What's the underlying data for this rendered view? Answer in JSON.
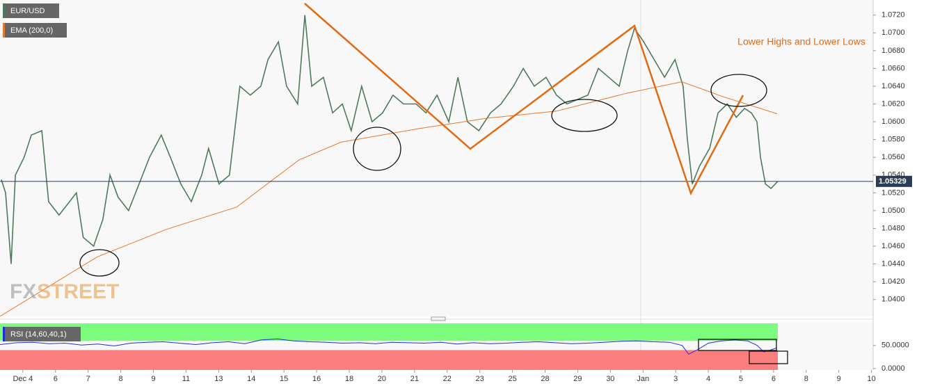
{
  "legend": {
    "symbol": "EUR/USD",
    "ema": "EMA (200,0)"
  },
  "annotation": "Lower Highs and  Lower Lows",
  "watermark": [
    "FX",
    "STREET"
  ],
  "chart_data": [
    {
      "type": "line",
      "x": [
        -0.66,
        -0.53,
        -0.36,
        -0.23,
        0.04,
        0.26,
        0.58,
        0.79,
        1.11,
        1.43,
        1.64,
        1.85,
        2.17,
        2.45,
        2.67,
        2.92,
        3.24,
        3.56,
        3.88,
        4.24,
        4.52,
        4.84,
        5.16,
        5.48,
        5.69,
        6.01,
        6.33,
        6.65,
        6.97,
        7.29,
        7.51,
        7.83,
        8.08,
        8.42,
        8.64,
        8.85,
        9.21,
        9.49,
        9.79,
        10.06,
        10.38,
        10.7,
        11.02,
        11.34,
        11.66,
        12.05,
        12.35,
        12.69,
        13.05,
        13.33,
        13.62,
        13.97,
        14.33,
        14.65,
        15.03,
        15.33,
        15.67,
        16.03,
        16.35,
        16.67,
        16.99,
        17.31,
        17.63,
        17.95,
        18.27,
        18.53,
        18.74,
        19.02,
        19.34,
        19.66,
        19.98,
        20.23,
        20.36,
        20.51,
        20.73,
        21.04,
        21.3,
        21.58,
        21.86,
        22.11,
        22.32,
        22.49,
        22.6,
        22.75,
        22.92,
        23.13
      ],
      "series": [
        {
          "name": "EUR/USD",
          "color": "#4d7a5c",
          "values": [
            1.0535,
            1.052,
            1.044,
            1.054,
            1.056,
            1.0585,
            1.059,
            1.051,
            1.0495,
            1.051,
            1.052,
            1.047,
            1.046,
            1.049,
            1.054,
            1.0515,
            1.05,
            1.053,
            1.056,
            1.0585,
            1.056,
            1.053,
            1.051,
            1.054,
            1.057,
            1.053,
            1.054,
            1.064,
            1.063,
            1.064,
            1.067,
            1.069,
            1.064,
            1.062,
            1.072,
            1.064,
            1.065,
            1.061,
            1.062,
            1.059,
            1.064,
            1.06,
            1.061,
            1.063,
            1.062,
            1.062,
            1.061,
            1.063,
            1.06,
            1.065,
            1.06,
            1.059,
            1.061,
            1.062,
            1.064,
            1.066,
            1.064,
            1.065,
            1.063,
            1.062,
            1.0625,
            1.063,
            1.066,
            1.065,
            1.064,
            1.068,
            1.0705,
            1.069,
            1.067,
            1.065,
            1.067,
            1.064,
            1.058,
            1.053,
            1.055,
            1.057,
            1.061,
            1.062,
            1.0605,
            1.0615,
            1.061,
            1.06,
            1.056,
            1.053,
            1.0525,
            1.0533
          ]
        },
        {
          "name": "EMA (200,0)",
          "color": "#e8782a",
          "x": [
            -0.7,
            2.28,
            4.41,
            6.55,
            8.46,
            9.74,
            12.09,
            14.22,
            16.35,
            18.49,
            20.19,
            21.47,
            23.11
          ],
          "values": [
            1.0381,
            1.0448,
            1.0479,
            1.0504,
            1.0557,
            1.0577,
            1.0592,
            1.0604,
            1.0612,
            1.0632,
            1.0645,
            1.0628,
            1.0609
          ]
        }
      ],
      "last": 1.05329,
      "xlim": [
        -0.7,
        26.05
      ],
      "ylim": [
        1.0381,
        1.0737
      ],
      "yticks": [
        {
          "value": 1.04,
          "label": "1.0400"
        },
        {
          "value": 1.042,
          "label": "1.0420"
        },
        {
          "value": 1.044,
          "label": "1.0440"
        },
        {
          "value": 1.046,
          "label": "1.0460"
        },
        {
          "value": 1.048,
          "label": "1.0480"
        },
        {
          "value": 1.05,
          "label": "1.0500"
        },
        {
          "value": 1.052,
          "label": "1.0520"
        },
        {
          "value": 1.054,
          "label": "1.0540"
        },
        {
          "value": 1.056,
          "label": "1.0560"
        },
        {
          "value": 1.058,
          "label": "1.0580"
        },
        {
          "value": 1.06,
          "label": "1.0600"
        },
        {
          "value": 1.062,
          "label": "1.0620"
        },
        {
          "value": 1.064,
          "label": "1.0640"
        },
        {
          "value": 1.066,
          "label": "1.0660"
        },
        {
          "value": 1.068,
          "label": "1.0680"
        },
        {
          "value": 1.07,
          "label": "1.0700"
        },
        {
          "value": 1.072,
          "label": "1.0720"
        }
      ]
    },
    {
      "type": "line",
      "x": [
        -0.7,
        -0.2,
        0.3,
        0.8,
        1.3,
        1.8,
        2.3,
        2.8,
        3.3,
        3.8,
        4.3,
        4.8,
        5.3,
        5.8,
        6.3,
        6.8,
        7.3,
        7.8,
        8.3,
        8.8,
        9.3,
        9.8,
        10.3,
        10.8,
        11.3,
        11.8,
        12.3,
        12.8,
        13.3,
        13.8,
        14.3,
        14.8,
        15.3,
        15.8,
        16.3,
        16.8,
        17.3,
        17.8,
        18.3,
        18.8,
        19.3,
        19.8,
        20.2,
        20.4,
        20.7,
        21.0,
        21.4,
        21.8,
        22.2,
        22.5,
        22.7,
        22.9,
        23.1
      ],
      "series": [
        {
          "name": "RSI (14,60,40,1)",
          "color": "#1f2fd6",
          "values": [
            52,
            56,
            57,
            54,
            55,
            51,
            53,
            49,
            55,
            57,
            58,
            55,
            52,
            56,
            58,
            54,
            62,
            64,
            60,
            58,
            57,
            55,
            56,
            54,
            57,
            56,
            55,
            57,
            53,
            56,
            54,
            55,
            57,
            58,
            56,
            54,
            55,
            57,
            59,
            60,
            58,
            57,
            50,
            31,
            42,
            55,
            60,
            62,
            60,
            50,
            36,
            40,
            45
          ]
        }
      ],
      "upper": 60,
      "lower": 40,
      "xlim": [
        -0.7,
        26.05
      ],
      "ylim": [
        -3,
        101
      ],
      "yticks": [
        {
          "value": 50,
          "label": "50.0000"
        },
        {
          "value": 0,
          "label": "0.0000"
        }
      ],
      "xticks": [
        {
          "value": 0,
          "label": "Dec 4"
        },
        {
          "value": 1,
          "label": "6"
        },
        {
          "value": 2,
          "label": "7"
        },
        {
          "value": 3,
          "label": "8"
        },
        {
          "value": 4,
          "label": "9"
        },
        {
          "value": 5,
          "label": "11"
        },
        {
          "value": 6,
          "label": "13"
        },
        {
          "value": 7,
          "label": "14"
        },
        {
          "value": 8,
          "label": "15"
        },
        {
          "value": 9,
          "label": "16"
        },
        {
          "value": 10,
          "label": "18"
        },
        {
          "value": 11,
          "label": "20"
        },
        {
          "value": 12,
          "label": "21"
        },
        {
          "value": 13,
          "label": "22"
        },
        {
          "value": 14,
          "label": "23"
        },
        {
          "value": 15,
          "label": "25"
        },
        {
          "value": 16,
          "label": "28"
        },
        {
          "value": 17,
          "label": "29"
        },
        {
          "value": 18,
          "label": "30"
        },
        {
          "value": 19,
          "label": "Jan"
        },
        {
          "value": 20,
          "label": "3"
        },
        {
          "value": 21,
          "label": "4"
        },
        {
          "value": 22,
          "label": "5"
        },
        {
          "value": 23,
          "label": "6"
        },
        {
          "value": 24,
          "label": "8"
        },
        {
          "value": 25,
          "label": "9"
        },
        {
          "value": 26,
          "label": "10"
        }
      ]
    }
  ]
}
